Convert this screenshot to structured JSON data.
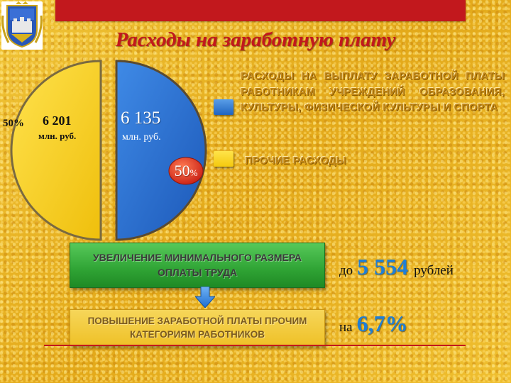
{
  "slide": {
    "title": "Расходы на заработную плату"
  },
  "pie": {
    "left": {
      "percent": "50%",
      "value": "6 201",
      "unit": "млн. руб.",
      "color": "#f5cd0f"
    },
    "right": {
      "value": "6 135",
      "unit": "млн. руб.",
      "percent_num": "50",
      "percent_sign": "%",
      "color": "#2a6fd0"
    }
  },
  "legend": [
    {
      "text": "Расходы на выплату заработной платы работникам учреждений образования, культуры, физической культуры и спорта",
      "color": "#2a6fd0"
    },
    {
      "text": "Прочие расходы",
      "color": "#f5cd0f"
    }
  ],
  "boxes": {
    "green": "Увеличение минимального размера оплаты труда",
    "gold": "Повышение заработной платы прочим категориям работников",
    "green_color": "#2fa334",
    "gold_color": "#efc128"
  },
  "results": {
    "first": {
      "prefix": "до",
      "value": "5 554",
      "suffix": "рублей"
    },
    "second": {
      "prefix": "на",
      "value": "6,7%"
    }
  },
  "colors": {
    "accent_red": "#c2181d",
    "highlight_blue": "#1f7fd6"
  }
}
